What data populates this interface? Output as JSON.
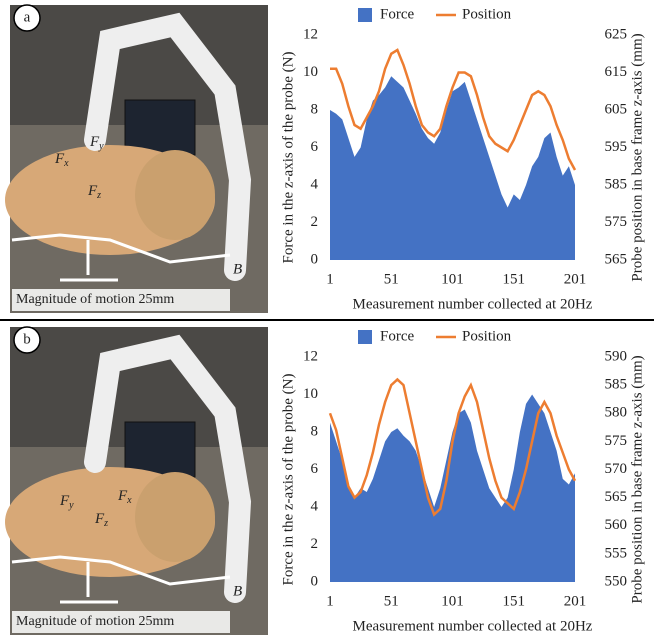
{
  "panels": [
    {
      "label": "a",
      "caption": "Magnitude of motion 25mm",
      "frame_label": "B",
      "forces": [
        {
          "base": "F",
          "sub": "y"
        },
        {
          "base": "F",
          "sub": "x"
        },
        {
          "base": "F",
          "sub": "z"
        }
      ]
    },
    {
      "label": "b",
      "caption": "Magnitude of motion 25mm",
      "frame_label": "B",
      "forces": [
        {
          "base": "F",
          "sub": "y"
        },
        {
          "base": "F",
          "sub": "x"
        },
        {
          "base": "F",
          "sub": "z"
        }
      ]
    }
  ],
  "chart_data": [
    {
      "type": "area_line",
      "x_label": "Measurement number collected at 20Hz",
      "y_label": "Force in the z-axis of the probe (N)",
      "y2_label": "Probe position in base frame z-axis (mm)",
      "x": [
        1,
        6,
        11,
        16,
        21,
        26,
        31,
        36,
        41,
        46,
        51,
        56,
        61,
        66,
        71,
        76,
        81,
        86,
        91,
        96,
        101,
        106,
        111,
        116,
        121,
        126,
        131,
        136,
        141,
        146,
        151,
        156,
        161,
        166,
        171,
        176,
        181,
        186,
        191,
        196,
        201
      ],
      "xlim": [
        1,
        201
      ],
      "xticks": [
        1,
        51,
        101,
        151,
        201
      ],
      "ylim": [
        0,
        12
      ],
      "yticks": [
        0,
        2,
        4,
        6,
        8,
        10,
        12
      ],
      "y2lim": [
        565,
        625
      ],
      "y2ticks": [
        565,
        575,
        585,
        595,
        605,
        615,
        625
      ],
      "legend": "top",
      "series": [
        {
          "name": "Force",
          "color": "#4472c4",
          "axis": "y",
          "values": [
            8,
            7.8,
            7.5,
            6.5,
            5.5,
            6,
            7.5,
            8.5,
            8.8,
            9.2,
            9.8,
            9.5,
            9.2,
            8.5,
            7.8,
            7,
            6.5,
            6.2,
            6.8,
            8,
            9,
            9.2,
            9.5,
            8.5,
            7.5,
            6.5,
            5.5,
            4.5,
            3.5,
            2.8,
            3.5,
            3.2,
            4,
            5,
            5.5,
            6.5,
            6.8,
            5.5,
            4.5,
            5,
            4
          ]
        },
        {
          "name": "Position",
          "color": "#ed7d31",
          "axis": "y2",
          "values": [
            616,
            616,
            612,
            606,
            601,
            600,
            603,
            606,
            610,
            616,
            620,
            621,
            617,
            612,
            606,
            601,
            599,
            598,
            600,
            606,
            611,
            615,
            615,
            614,
            609,
            603,
            598,
            596,
            595,
            594,
            597,
            601,
            605,
            609,
            610,
            609,
            606,
            601,
            597,
            592,
            589
          ]
        }
      ]
    },
    {
      "type": "area_line",
      "x_label": "Measurement number collected at 20Hz",
      "y_label": "Force in the z-axis of the probe (N)",
      "y2_label": "Probe position in base frame z-axis (mm)",
      "x": [
        1,
        6,
        11,
        16,
        21,
        26,
        31,
        36,
        41,
        46,
        51,
        56,
        61,
        66,
        71,
        76,
        81,
        86,
        91,
        96,
        101,
        106,
        111,
        116,
        121,
        126,
        131,
        136,
        141,
        146,
        151,
        156,
        161,
        166,
        171,
        176,
        181,
        186,
        191,
        196,
        201
      ],
      "xlim": [
        1,
        201
      ],
      "xticks": [
        1,
        51,
        101,
        151,
        201
      ],
      "ylim": [
        0,
        12
      ],
      "yticks": [
        0,
        2,
        4,
        6,
        8,
        10,
        12
      ],
      "y2lim": [
        550,
        590
      ],
      "y2ticks": [
        550,
        555,
        560,
        565,
        570,
        575,
        580,
        585,
        590
      ],
      "legend": "top",
      "series": [
        {
          "name": "Force",
          "color": "#4472c4",
          "axis": "y",
          "values": [
            8.5,
            7.5,
            6.5,
            5,
            4.5,
            5,
            4.8,
            5.5,
            6.5,
            7.5,
            8,
            8.2,
            7.8,
            7.5,
            7,
            6,
            5,
            4,
            5,
            6.5,
            8,
            9,
            9.2,
            8.5,
            7,
            6,
            5,
            4.5,
            4,
            4.5,
            6,
            8,
            9.5,
            10,
            9.5,
            9,
            8,
            7,
            5.5,
            5.2,
            5.8
          ]
        },
        {
          "name": "Position",
          "color": "#ed7d31",
          "axis": "y2",
          "values": [
            580,
            577,
            572,
            567,
            565,
            566,
            569,
            573,
            578,
            582,
            585,
            586,
            585,
            580,
            575,
            570,
            565,
            562,
            563,
            568,
            575,
            580,
            583,
            585,
            582,
            577,
            572,
            568,
            565,
            564,
            563,
            566,
            570,
            575,
            580,
            582,
            580,
            576,
            573,
            570,
            568
          ]
        }
      ]
    }
  ]
}
